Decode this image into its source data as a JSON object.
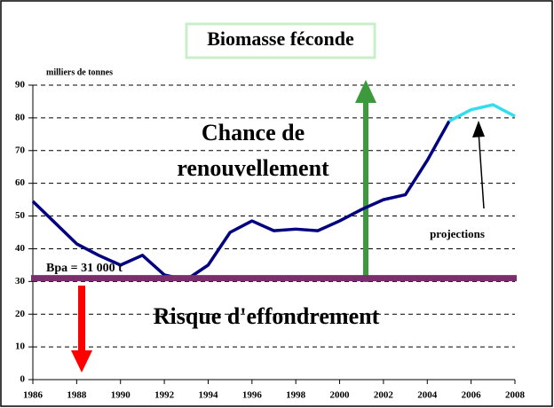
{
  "chart_data": {
    "type": "line",
    "title": "Biomasse féconde",
    "y_label": "milliers de tonnes",
    "annotations": [
      "Chance de",
      "renouvellement",
      "Risque d'effondrement",
      "projections"
    ],
    "reference_line": {
      "value": 31,
      "label": "Bpa = 31 000 t",
      "color": "#7a2e6e"
    },
    "x": [
      1986,
      1987,
      1988,
      1989,
      1990,
      1991,
      1992,
      1993,
      1994,
      1995,
      1996,
      1997,
      1998,
      1999,
      2000,
      2001,
      2002,
      2003,
      2004,
      2005,
      2006,
      2007,
      2008
    ],
    "series": [
      {
        "color": "#000080",
        "values": [
          54.5,
          48,
          41.5,
          38,
          35,
          38,
          32,
          30.5,
          35,
          45,
          48.5,
          45.5,
          46,
          45.5,
          48.5,
          52,
          55,
          56.5,
          67,
          79,
          null,
          null,
          null
        ]
      },
      {
        "color": "#33ddf0",
        "values": [
          null,
          null,
          null,
          null,
          null,
          null,
          null,
          null,
          null,
          null,
          null,
          null,
          null,
          null,
          null,
          null,
          null,
          null,
          null,
          79,
          82.5,
          84,
          80.5
        ]
      }
    ],
    "xlim": [
      1986,
      2008
    ],
    "xticks": [
      1986,
      1988,
      1990,
      1992,
      1994,
      1996,
      1998,
      2000,
      2002,
      2004,
      2006,
      2008
    ],
    "ylim": [
      0,
      90
    ],
    "yticks": [
      0,
      10,
      20,
      30,
      40,
      50,
      60,
      70,
      80,
      90
    ],
    "grid": true
  }
}
